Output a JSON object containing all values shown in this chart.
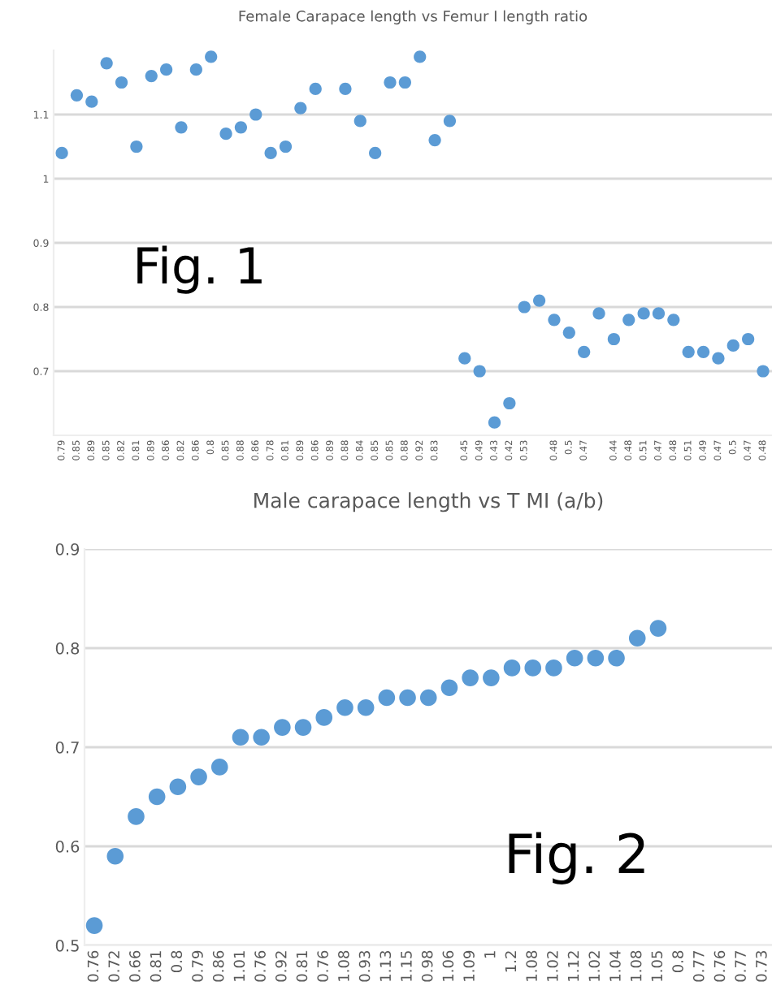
{
  "chart_data": [
    {
      "type": "scatter",
      "title": "Female Carapace length vs Femur I length ratio",
      "categories": [
        "0.79",
        "0.85",
        "0.89",
        "0.85",
        "0.82",
        "0.81",
        "0.89",
        "0.86",
        "0.82",
        "0.86",
        "0.8",
        "0.85",
        "0.88",
        "0.86",
        "0.78",
        "0.81",
        "0.89",
        "0.86",
        "0.89",
        "0.88",
        "0.84",
        "0.85",
        "0.85",
        "0.88",
        "0.92",
        "0.83",
        null,
        "0.45",
        "0.49",
        "0.43",
        "0.42",
        "0.53",
        null,
        "0.48",
        "0.5",
        "0.47",
        null,
        "0.44",
        "0.48",
        "0.51",
        "0.47",
        "0.48",
        "0.51",
        "0.49",
        "0.47",
        "0.5",
        "0.47",
        "0.48"
      ],
      "values": [
        1.04,
        1.13,
        1.12,
        1.18,
        1.15,
        1.05,
        1.16,
        1.17,
        1.08,
        1.17,
        1.19,
        1.07,
        1.08,
        1.1,
        1.04,
        1.05,
        1.11,
        1.14,
        null,
        1.14,
        1.09,
        1.04,
        1.15,
        1.15,
        1.19,
        1.06,
        1.09,
        0.72,
        0.7,
        0.62,
        0.65,
        0.8,
        0.81,
        0.78,
        0.76,
        0.73,
        0.79,
        0.75,
        0.78,
        0.79,
        0.79,
        0.78,
        0.73,
        0.73,
        0.72,
        0.74,
        0.75,
        0.7
      ],
      "color": "#5b9bd5",
      "marker": "circle",
      "ylim": [
        0.6,
        1.2
      ],
      "yticks": [
        0.7,
        0.8,
        0.9,
        1,
        1.1
      ],
      "grid": "y",
      "annotations": [
        "Fig. 1"
      ]
    },
    {
      "type": "scatter",
      "title": "Male carapace length vs T MI (a/b)",
      "categories": [
        "0.76",
        "0.72",
        "0.66",
        "0.81",
        "0.8",
        "0.79",
        "0.86",
        "1.01",
        "0.76",
        "0.92",
        "0.81",
        "0.76",
        "1.08",
        "0.93",
        "1.13",
        "1.15",
        "0.98",
        "1.06",
        "1.09",
        "1",
        "1.2",
        "1.08",
        "1.02",
        "1.12",
        "1.02",
        "1.04",
        "1.08",
        "1.05",
        "0.8",
        "0.77",
        "0.76",
        "0.77",
        "0.73"
      ],
      "values": [
        0.52,
        0.59,
        0.63,
        0.65,
        0.66,
        0.67,
        0.68,
        0.71,
        0.71,
        0.72,
        0.72,
        0.73,
        0.74,
        0.74,
        0.75,
        0.75,
        0.75,
        0.76,
        0.77,
        0.77,
        0.78,
        0.78,
        0.78,
        0.79,
        0.79,
        0.79,
        0.81,
        0.82,
        null,
        null,
        null,
        null,
        null
      ],
      "color": "#5b9bd5",
      "marker": "circle",
      "ylim": [
        0.5,
        0.9
      ],
      "yticks": [
        0.5,
        0.6,
        0.7,
        0.8,
        0.9
      ],
      "grid": "y",
      "annotations": [
        "Fig. 2"
      ]
    }
  ]
}
